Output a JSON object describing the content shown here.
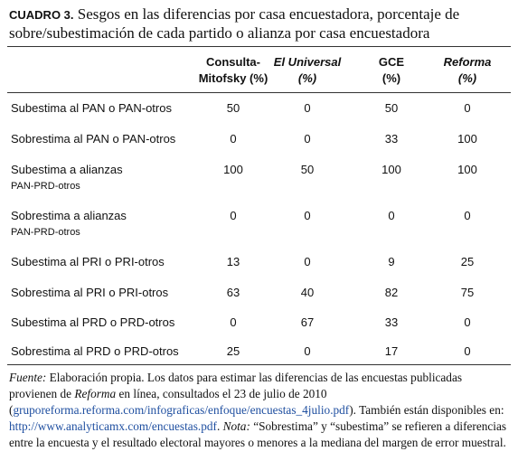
{
  "header": {
    "label": "CUADRO 3.",
    "title": "Sesgos en las diferencias por casa encuestadora, porcentaje de sobre/subestimación de cada partido o alianza por casa encuestadora"
  },
  "table": {
    "columns": [
      [
        "Consulta-",
        "Mitofsky (%)"
      ],
      [
        "El Universal",
        "(%)"
      ],
      [
        "GCE",
        "(%)"
      ],
      [
        "Reforma",
        "(%)"
      ]
    ],
    "rows": [
      {
        "label": [
          "Subestima al PAN o PAN-otros"
        ],
        "values": [
          50,
          0,
          50,
          0
        ]
      },
      {
        "label": [
          "Sobrestima al PAN o PAN-otros"
        ],
        "values": [
          0,
          0,
          33,
          100
        ]
      },
      {
        "label": [
          "Subestima a alianzas",
          "PAN-PRD-otros"
        ],
        "values": [
          100,
          50,
          100,
          100
        ]
      },
      {
        "label": [
          "Sobrestima a alianzas",
          "PAN-PRD-otros"
        ],
        "values": [
          0,
          0,
          0,
          0
        ]
      },
      {
        "label": [
          "Subestima al PRI o PRI-otros"
        ],
        "values": [
          13,
          0,
          9,
          25
        ]
      },
      {
        "label": [
          "Sobrestima al PRI o PRI-otros"
        ],
        "values": [
          63,
          40,
          82,
          75
        ]
      },
      {
        "label": [
          "Subestima al PRD o PRD-otros"
        ],
        "values": [
          0,
          67,
          33,
          0
        ]
      },
      {
        "label": [
          "Sobrestima al PRD o PRD-otros"
        ],
        "values": [
          25,
          0,
          17,
          0
        ]
      }
    ]
  },
  "footnote": [
    "Fuente:",
    " Elaboración propia. Los datos para estimar las diferencias de las encuestas publicadas provienen de ",
    "Reforma",
    " en línea, consultados el 23 de julio de 2010 (",
    "gruporeforma.reforma.com/infograficas/enfoque/encuestas_4julio.pdf",
    "). También están disponibles en: ",
    "http://www.analyticamx.com/encuestas.pdf",
    ". ",
    "Nota:",
    " “Sobrestima” y “subestima” se refieren a diferencias entre la encuesta y el resultado electoral mayores o menores a la mediana del margen de error muestral."
  ]
}
